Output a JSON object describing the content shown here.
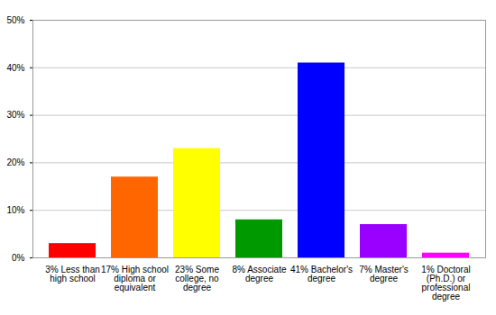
{
  "chart_data": {
    "type": "bar",
    "categories": [
      "3% Less than high school",
      "17% High school diploma or equivalent",
      "23% Some college, no degree",
      "8% Associate degree",
      "41% Bachelor's degree",
      "7% Master's degree",
      "1% Doctoral (Ph.D.) or professional degree"
    ],
    "values": [
      3,
      17,
      23,
      8,
      41,
      7,
      1
    ],
    "colors": [
      "#ff0000",
      "#ff6600",
      "#ffff00",
      "#009900",
      "#0000ff",
      "#9900ff",
      "#ff00ff"
    ],
    "ylim": [
      0,
      50
    ],
    "yticks": [
      {
        "value": 0,
        "label": "0%"
      },
      {
        "value": 10,
        "label": "10%"
      },
      {
        "value": 20,
        "label": "20%"
      },
      {
        "value": 30,
        "label": "30%"
      },
      {
        "value": 40,
        "label": "40%"
      },
      {
        "value": 50,
        "label": "50%"
      }
    ],
    "grid": true
  }
}
